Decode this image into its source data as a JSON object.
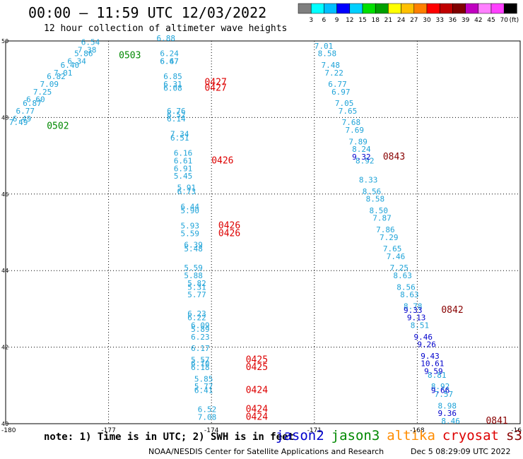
{
  "title": "00:00 – 11:59 UTC 12/03/2022",
  "subtitle": "12 hour collection of altimeter wave heights",
  "colorbar": {
    "labels": [
      "3",
      "6",
      "9",
      "12",
      "15",
      "18",
      "21",
      "24",
      "27",
      "30",
      "33",
      "36",
      "39",
      "42",
      "45",
      "70"
    ],
    "unit": "(ft)",
    "colors": [
      "#7f7f7f",
      "#00ffff",
      "#00bfff",
      "#0000ff",
      "#00cfff",
      "#00e000",
      "#00a000",
      "#ffff00",
      "#ffc000",
      "#ff8000",
      "#ff0000",
      "#c00000",
      "#800000",
      "#c000c0",
      "#ff80ff",
      "#ff40ff",
      "#000000"
    ]
  },
  "axes": {
    "lon_labels": [
      "-180",
      "-177",
      "-174",
      "-171",
      "-168",
      "-16"
    ],
    "lat_labels": [
      "50",
      "48",
      "46",
      "44",
      "42",
      "40"
    ]
  },
  "note": "note: 1) Time is in UTC; 2) SWH is in feet",
  "satellites": [
    {
      "name": "jason2",
      "color": "#0000cc"
    },
    {
      "name": "jason3",
      "color": "#008800"
    },
    {
      "name": "altika",
      "color": "#ff8c00"
    },
    {
      "name": "cryosat",
      "color": "#dd0000"
    },
    {
      "name": "s3a",
      "color": "#880000"
    }
  ],
  "credit": "NOAA/NESDIS Center for Satellite Applications and Research",
  "stamp": "Dec  5 08:29:09 UTC 2022",
  "tracks": [
    {
      "color": "#1fa3d8",
      "points": [
        {
          "v": "6.54",
          "lon": -177.8,
          "lat": 49.9
        },
        {
          "v": "7.38",
          "lon": -177.9,
          "lat": 49.7
        },
        {
          "v": "5.86",
          "lon": -178.0,
          "lat": 49.6
        },
        {
          "v": "6.34",
          "lon": -178.2,
          "lat": 49.4
        },
        {
          "v": "6.40",
          "lon": -178.4,
          "lat": 49.3
        },
        {
          "v": "7.01",
          "lon": -178.6,
          "lat": 49.1
        },
        {
          "v": "6.82",
          "lon": -178.8,
          "lat": 49.0
        },
        {
          "v": "7.09",
          "lon": -179.0,
          "lat": 48.8
        },
        {
          "v": "7.25",
          "lon": -179.2,
          "lat": 48.6
        },
        {
          "v": "6.60",
          "lon": -179.4,
          "lat": 48.4
        },
        {
          "v": "6.87",
          "lon": -179.5,
          "lat": 48.3
        },
        {
          "v": "6.77",
          "lon": -179.7,
          "lat": 48.1
        },
        {
          "v": "6.49",
          "lon": -179.8,
          "lat": 47.9
        },
        {
          "v": "7.49",
          "lon": -179.9,
          "lat": 47.8
        }
      ]
    },
    {
      "color": "#1fa3d8",
      "points": [
        {
          "v": "6.88",
          "lon": -175.6,
          "lat": 50.0
        },
        {
          "v": "6.24",
          "lon": -175.5,
          "lat": 49.6
        },
        {
          "v": "6.47",
          "lon": -175.5,
          "lat": 49.4
        },
        {
          "v": "6.67",
          "lon": -175.5,
          "lat": 49.4
        },
        {
          "v": "6.85",
          "lon": -175.4,
          "lat": 49.0
        },
        {
          "v": "6.31",
          "lon": -175.4,
          "lat": 48.8
        },
        {
          "v": "6.08",
          "lon": -175.4,
          "lat": 48.7
        },
        {
          "v": "6.76",
          "lon": -175.3,
          "lat": 48.1
        },
        {
          "v": "6.52",
          "lon": -175.3,
          "lat": 48.0
        },
        {
          "v": "6.14",
          "lon": -175.3,
          "lat": 47.9
        },
        {
          "v": "7.34",
          "lon": -175.2,
          "lat": 47.5
        },
        {
          "v": "6.51",
          "lon": -175.2,
          "lat": 47.4
        },
        {
          "v": "6.16",
          "lon": -175.1,
          "lat": 47.0
        },
        {
          "v": "6.61",
          "lon": -175.1,
          "lat": 46.8
        },
        {
          "v": "6.91",
          "lon": -175.1,
          "lat": 46.6
        },
        {
          "v": "5.45",
          "lon": -175.1,
          "lat": 46.4
        },
        {
          "v": "5.91",
          "lon": -175.0,
          "lat": 46.1
        },
        {
          "v": "6.73",
          "lon": -175.0,
          "lat": 46.0
        },
        {
          "v": "6.44",
          "lon": -174.9,
          "lat": 45.6
        },
        {
          "v": "5.90",
          "lon": -174.9,
          "lat": 45.5
        },
        {
          "v": "5.93",
          "lon": -174.9,
          "lat": 45.1
        },
        {
          "v": "5.59",
          "lon": -174.9,
          "lat": 44.9
        },
        {
          "v": "6.39",
          "lon": -174.8,
          "lat": 44.6
        },
        {
          "v": "5.48",
          "lon": -174.8,
          "lat": 44.5
        },
        {
          "v": "5.59",
          "lon": -174.8,
          "lat": 44.0
        },
        {
          "v": "5.88",
          "lon": -174.8,
          "lat": 43.8
        },
        {
          "v": "5.82",
          "lon": -174.7,
          "lat": 43.6
        },
        {
          "v": "5.31",
          "lon": -174.7,
          "lat": 43.5
        },
        {
          "v": "5.77",
          "lon": -174.7,
          "lat": 43.3
        },
        {
          "v": "6.23",
          "lon": -174.7,
          "lat": 42.8
        },
        {
          "v": "6.22",
          "lon": -174.7,
          "lat": 42.7
        },
        {
          "v": "6.09",
          "lon": -174.6,
          "lat": 42.5
        },
        {
          "v": "5.89",
          "lon": -174.6,
          "lat": 42.4
        },
        {
          "v": "6.23",
          "lon": -174.6,
          "lat": 42.2
        },
        {
          "v": "6.17",
          "lon": -174.6,
          "lat": 41.9
        },
        {
          "v": "5.57",
          "lon": -174.6,
          "lat": 41.6
        },
        {
          "v": "6.10",
          "lon": -174.6,
          "lat": 41.5
        },
        {
          "v": "6.18",
          "lon": -174.6,
          "lat": 41.4
        },
        {
          "v": "5.85",
          "lon": -174.5,
          "lat": 41.1
        },
        {
          "v": "5.77",
          "lon": -174.5,
          "lat": 40.9
        },
        {
          "v": "6.41",
          "lon": -174.5,
          "lat": 40.8
        },
        {
          "v": "6.52",
          "lon": -174.4,
          "lat": 40.3
        },
        {
          "v": "7.08",
          "lon": -174.4,
          "lat": 40.1
        }
      ]
    },
    {
      "color": "#1fa3d8",
      "points": [
        {
          "v": "7.01",
          "lon": -171.0,
          "lat": 49.8
        },
        {
          "v": "8.58",
          "lon": -170.9,
          "lat": 49.6
        },
        {
          "v": "7.48",
          "lon": -170.8,
          "lat": 49.3
        },
        {
          "v": "7.22",
          "lon": -170.7,
          "lat": 49.1
        },
        {
          "v": "6.77",
          "lon": -170.6,
          "lat": 48.8
        },
        {
          "v": "6.97",
          "lon": -170.5,
          "lat": 48.6
        },
        {
          "v": "7.05",
          "lon": -170.4,
          "lat": 48.3
        },
        {
          "v": "7.65",
          "lon": -170.3,
          "lat": 48.1
        },
        {
          "v": "7.68",
          "lon": -170.2,
          "lat": 47.8
        },
        {
          "v": "7.69",
          "lon": -170.1,
          "lat": 47.6
        },
        {
          "v": "7.89",
          "lon": -170.0,
          "lat": 47.3
        },
        {
          "v": "8.24",
          "lon": -169.9,
          "lat": 47.1
        },
        {
          "v": "8.92",
          "lon": -169.8,
          "lat": 46.8
        },
        {
          "v": "8.33",
          "lon": -169.7,
          "lat": 46.3
        },
        {
          "v": "8.56",
          "lon": -169.6,
          "lat": 46.0
        },
        {
          "v": "8.58",
          "lon": -169.5,
          "lat": 45.8
        },
        {
          "v": "8.50",
          "lon": -169.4,
          "lat": 45.5
        },
        {
          "v": "7.87",
          "lon": -169.3,
          "lat": 45.3
        },
        {
          "v": "7.86",
          "lon": -169.2,
          "lat": 45.0
        },
        {
          "v": "7.29",
          "lon": -169.1,
          "lat": 44.8
        },
        {
          "v": "7.65",
          "lon": -169.0,
          "lat": 44.5
        },
        {
          "v": "7.46",
          "lon": -168.9,
          "lat": 44.3
        },
        {
          "v": "7.25",
          "lon": -168.8,
          "lat": 44.0
        },
        {
          "v": "8.63",
          "lon": -168.7,
          "lat": 43.8
        },
        {
          "v": "8.56",
          "lon": -168.6,
          "lat": 43.5
        },
        {
          "v": "8.63",
          "lon": -168.5,
          "lat": 43.3
        },
        {
          "v": "8.78",
          "lon": -168.4,
          "lat": 43.0
        },
        {
          "v": "8.51",
          "lon": -168.2,
          "lat": 42.5
        },
        {
          "v": "8.81",
          "lon": -167.7,
          "lat": 41.2
        },
        {
          "v": "8.92",
          "lon": -167.6,
          "lat": 40.9
        },
        {
          "v": "7.57",
          "lon": -167.5,
          "lat": 40.7
        },
        {
          "v": "8.98",
          "lon": -167.4,
          "lat": 40.4
        },
        {
          "v": "8.46",
          "lon": -167.3,
          "lat": 40.0
        }
      ]
    },
    {
      "color": "#0000cc",
      "points": [
        {
          "v": "9.32",
          "lon": -169.9,
          "lat": 46.9
        },
        {
          "v": "9.33",
          "lon": -168.4,
          "lat": 42.9
        },
        {
          "v": "9.13",
          "lon": -168.3,
          "lat": 42.7
        },
        {
          "v": "9.46",
          "lon": -168.1,
          "lat": 42.2
        },
        {
          "v": "9.26",
          "lon": -168.0,
          "lat": 42.0
        },
        {
          "v": "9.43",
          "lon": -167.9,
          "lat": 41.7
        },
        {
          "v": "10.61",
          "lon": -167.9,
          "lat": 41.5
        },
        {
          "v": "9.59",
          "lon": -167.8,
          "lat": 41.3
        },
        {
          "v": "9.66",
          "lon": -167.6,
          "lat": 40.8
        },
        {
          "v": "9.36",
          "lon": -167.4,
          "lat": 40.2
        }
      ]
    }
  ],
  "time_labels": [
    {
      "t": "0503",
      "color": "#008800",
      "lon": -176.7,
      "lat": 49.55
    },
    {
      "t": "0502",
      "color": "#008800",
      "lon": -178.8,
      "lat": 47.7
    },
    {
      "t": "0427",
      "color": "#dd0000",
      "lon": -174.2,
      "lat": 48.85
    },
    {
      "t": "0427",
      "color": "#dd0000",
      "lon": -174.2,
      "lat": 48.7
    },
    {
      "t": "0426",
      "color": "#dd0000",
      "lon": -174.0,
      "lat": 46.8
    },
    {
      "t": "0426",
      "color": "#dd0000",
      "lon": -173.8,
      "lat": 45.1
    },
    {
      "t": "0426",
      "color": "#dd0000",
      "lon": -173.8,
      "lat": 44.9
    },
    {
      "t": "0425",
      "color": "#dd0000",
      "lon": -173.0,
      "lat": 41.6
    },
    {
      "t": "0425",
      "color": "#dd0000",
      "lon": -173.0,
      "lat": 41.4
    },
    {
      "t": "0424",
      "color": "#dd0000",
      "lon": -173.0,
      "lat": 40.8
    },
    {
      "t": "0424",
      "color": "#dd0000",
      "lon": -173.0,
      "lat": 40.3
    },
    {
      "t": "0424",
      "color": "#dd0000",
      "lon": -173.0,
      "lat": 40.1
    },
    {
      "t": "0843",
      "color": "#880000",
      "lon": -169.0,
      "lat": 46.9
    },
    {
      "t": "0842",
      "color": "#880000",
      "lon": -167.3,
      "lat": 42.9
    },
    {
      "t": "0841",
      "color": "#880000",
      "lon": -166.0,
      "lat": 40.0
    }
  ]
}
